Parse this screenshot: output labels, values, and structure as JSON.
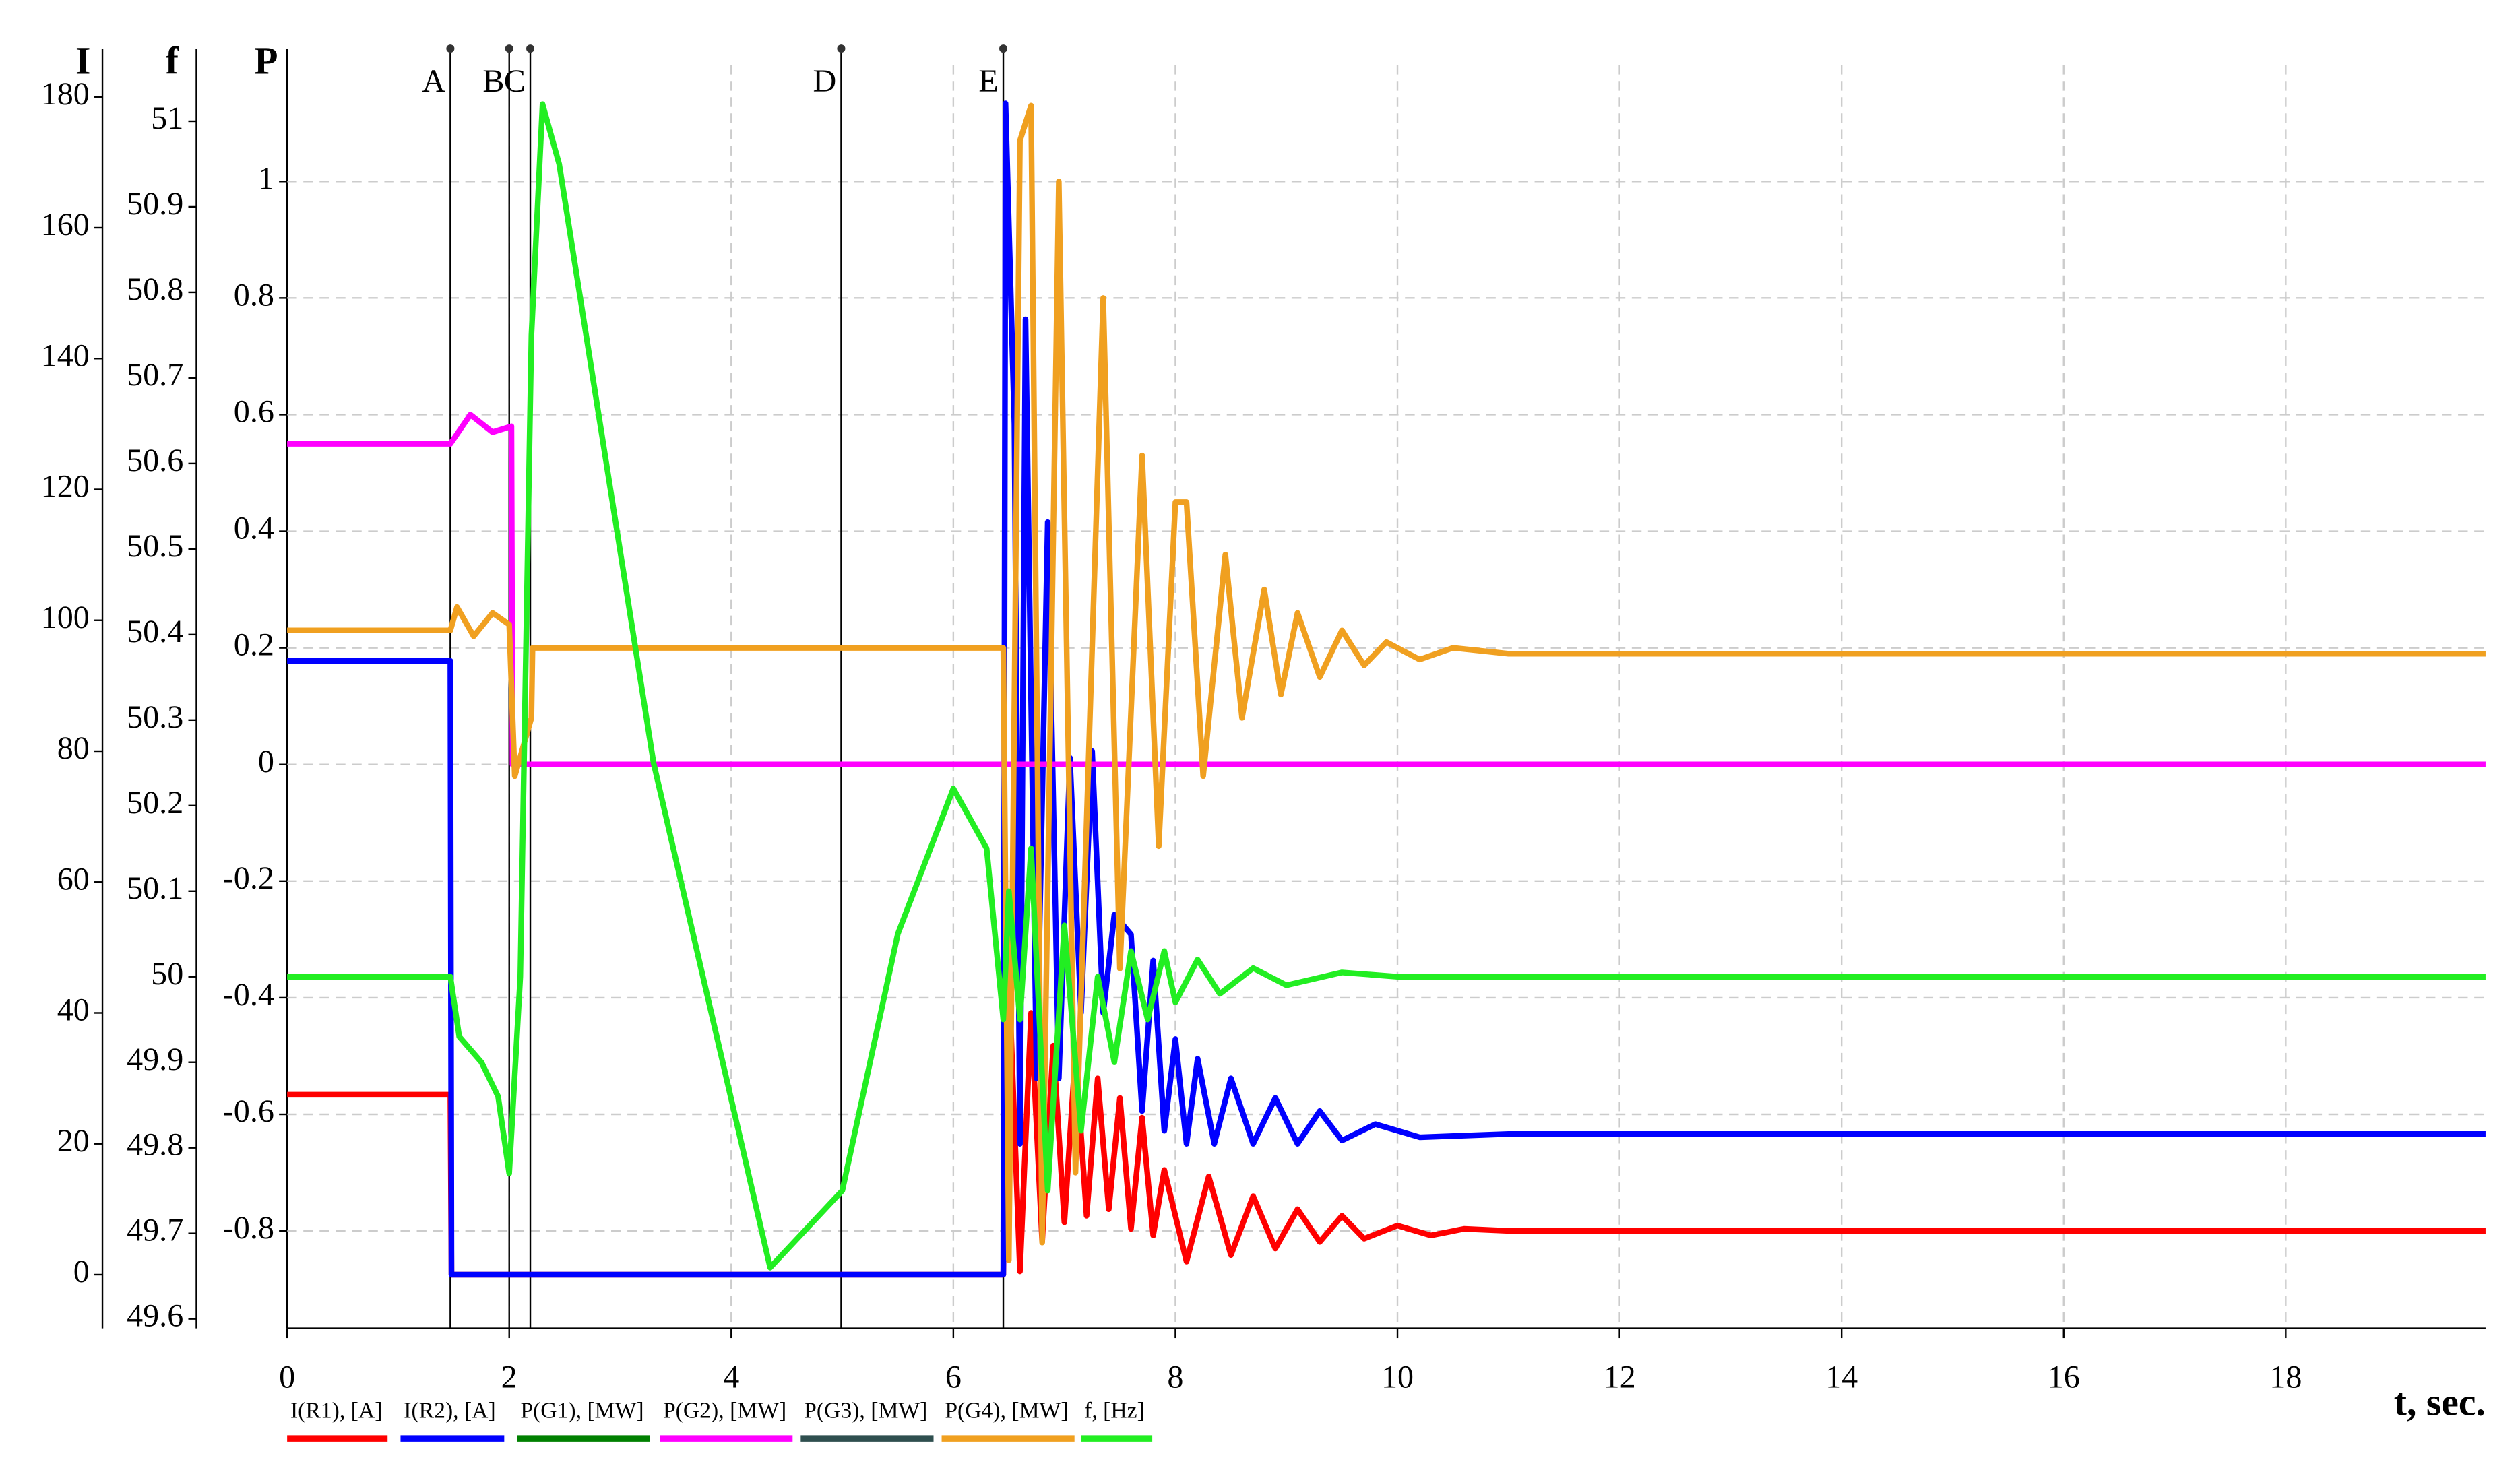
{
  "chart_data": {
    "type": "line",
    "xlabel": "t, sec.",
    "xlim": [
      0,
      19.8
    ],
    "xticks": [
      0,
      2,
      4,
      6,
      8,
      10,
      12,
      14,
      16,
      18
    ],
    "grid": true,
    "axes": [
      {
        "label": "I",
        "lim": [
          -8.2,
          184.9
        ],
        "ticks": [
          0,
          20,
          40,
          60,
          80,
          100,
          120,
          140,
          160,
          180
        ]
      },
      {
        "label": "f",
        "lim": [
          49.589,
          51.066
        ],
        "ticks": [
          49.6,
          49.7,
          49.8,
          49.9,
          50,
          50.1,
          50.2,
          50.3,
          50.4,
          50.5,
          50.6,
          50.7,
          50.8,
          50.9,
          51
        ]
      },
      {
        "label": "P",
        "lim": [
          -0.967,
          1.2
        ],
        "ticks": [
          -0.8,
          -0.6,
          -0.4,
          -0.2,
          0,
          0.2,
          0.4,
          0.6,
          0.8,
          1
        ]
      }
    ],
    "annotations": [
      {
        "label": "A",
        "x": 1.47
      },
      {
        "label": "B",
        "x": 2.0
      },
      {
        "label": "C",
        "x": 2.19
      },
      {
        "label": "D",
        "x": 4.99
      },
      {
        "label": "E",
        "x": 6.45
      }
    ],
    "series": [
      {
        "name": "I(R1), [A]",
        "color": "#ff0000",
        "axis": 0,
        "x": [
          0,
          1.47,
          1.48,
          6.45,
          6.5,
          6.6,
          6.7,
          6.8,
          6.9,
          7.0,
          7.1,
          7.2,
          7.3,
          7.4,
          7.5,
          7.6,
          7.7,
          7.8,
          7.9,
          8.1,
          8.3,
          8.5,
          8.7,
          8.9,
          9.1,
          9.3,
          9.5,
          9.7,
          10,
          10.3,
          10.6,
          11,
          19.8
        ],
        "values": [
          27.5,
          27.5,
          0,
          0,
          46,
          0.5,
          40,
          5,
          35,
          8,
          34,
          9,
          30,
          10,
          27,
          7,
          24,
          6,
          16,
          2,
          15,
          3,
          12,
          4,
          10,
          5,
          9,
          5.5,
          7.5,
          6,
          7,
          6.7,
          6.7
        ]
      },
      {
        "name": "I(R2), [A]",
        "color": "#0000ff",
        "axis": 0,
        "x": [
          0,
          1.47,
          1.48,
          6.45,
          6.47,
          6.55,
          6.6,
          6.65,
          6.75,
          6.85,
          6.95,
          7.05,
          7.15,
          7.25,
          7.35,
          7.45,
          7.6,
          7.7,
          7.8,
          7.9,
          8.0,
          8.1,
          8.2,
          8.35,
          8.5,
          8.7,
          8.9,
          9.1,
          9.3,
          9.5,
          9.8,
          10.2,
          11,
          19.8
        ],
        "values": [
          93.8,
          93.8,
          0,
          0,
          179,
          130,
          20,
          146,
          30,
          115,
          30,
          79,
          40,
          80,
          40,
          55,
          52,
          25,
          48,
          22,
          36,
          20,
          33,
          20,
          30,
          20,
          27,
          20,
          25,
          20.5,
          23,
          21,
          21.5,
          21.5
        ]
      },
      {
        "name": "P(G1), [MW]",
        "color": "#008000",
        "axis": 2
      },
      {
        "name": "P(G2), [MW]",
        "color": "#ff00ff",
        "axis": 2,
        "x": [
          0,
          1.47,
          1.65,
          1.85,
          2.02,
          2.03,
          19.8
        ],
        "values": [
          0.55,
          0.55,
          0.6,
          0.57,
          0.58,
          0,
          0
        ]
      },
      {
        "name": "P(G3), [MW]",
        "color": "#2f4f4f",
        "axis": 2
      },
      {
        "name": "P(G4), [MW]",
        "color": "#f0a020",
        "axis": 2,
        "x": [
          0,
          1.47,
          1.53,
          1.68,
          1.85,
          2.0,
          2.05,
          2.2,
          2.21,
          6.45,
          6.5,
          6.6,
          6.7,
          6.8,
          6.95,
          7.1,
          7.35,
          7.5,
          7.7,
          7.85,
          8.0,
          8.1,
          8.25,
          8.45,
          8.6,
          8.8,
          8.95,
          9.1,
          9.3,
          9.5,
          9.7,
          9.9,
          10.2,
          10.5,
          11,
          19.8
        ],
        "values": [
          0.23,
          0.23,
          0.27,
          0.22,
          0.26,
          0.24,
          -0.02,
          0.08,
          0.2,
          0.2,
          -0.85,
          1.07,
          1.13,
          -0.82,
          1.0,
          -0.7,
          0.8,
          -0.35,
          0.53,
          -0.14,
          0.45,
          0.45,
          -0.02,
          0.36,
          0.08,
          0.3,
          0.12,
          0.26,
          0.15,
          0.23,
          0.17,
          0.21,
          0.18,
          0.2,
          0.19,
          0.19
        ]
      },
      {
        "name": "f, [Hz]",
        "color": "#22ee22",
        "axis": 1,
        "x": [
          0,
          1.47,
          1.55,
          1.75,
          1.9,
          2.0,
          2.1,
          2.2,
          2.3,
          2.45,
          3.3,
          4.35,
          5.0,
          5.5,
          6.0,
          6.3,
          6.45,
          6.5,
          6.6,
          6.7,
          6.85,
          7.0,
          7.15,
          7.3,
          7.45,
          7.6,
          7.75,
          7.9,
          8.0,
          8.2,
          8.4,
          8.7,
          9.0,
          9.5,
          10,
          19.8
        ],
        "values": [
          50,
          50,
          49.93,
          49.9,
          49.86,
          49.77,
          50.0,
          50.75,
          51.02,
          50.95,
          50.25,
          49.66,
          49.75,
          50.05,
          50.22,
          50.15,
          49.95,
          50.1,
          49.95,
          50.15,
          49.75,
          50.06,
          49.82,
          50.0,
          49.9,
          50.03,
          49.95,
          50.03,
          49.97,
          50.02,
          49.98,
          50.01,
          49.99,
          50.005,
          50,
          50
        ]
      }
    ]
  }
}
